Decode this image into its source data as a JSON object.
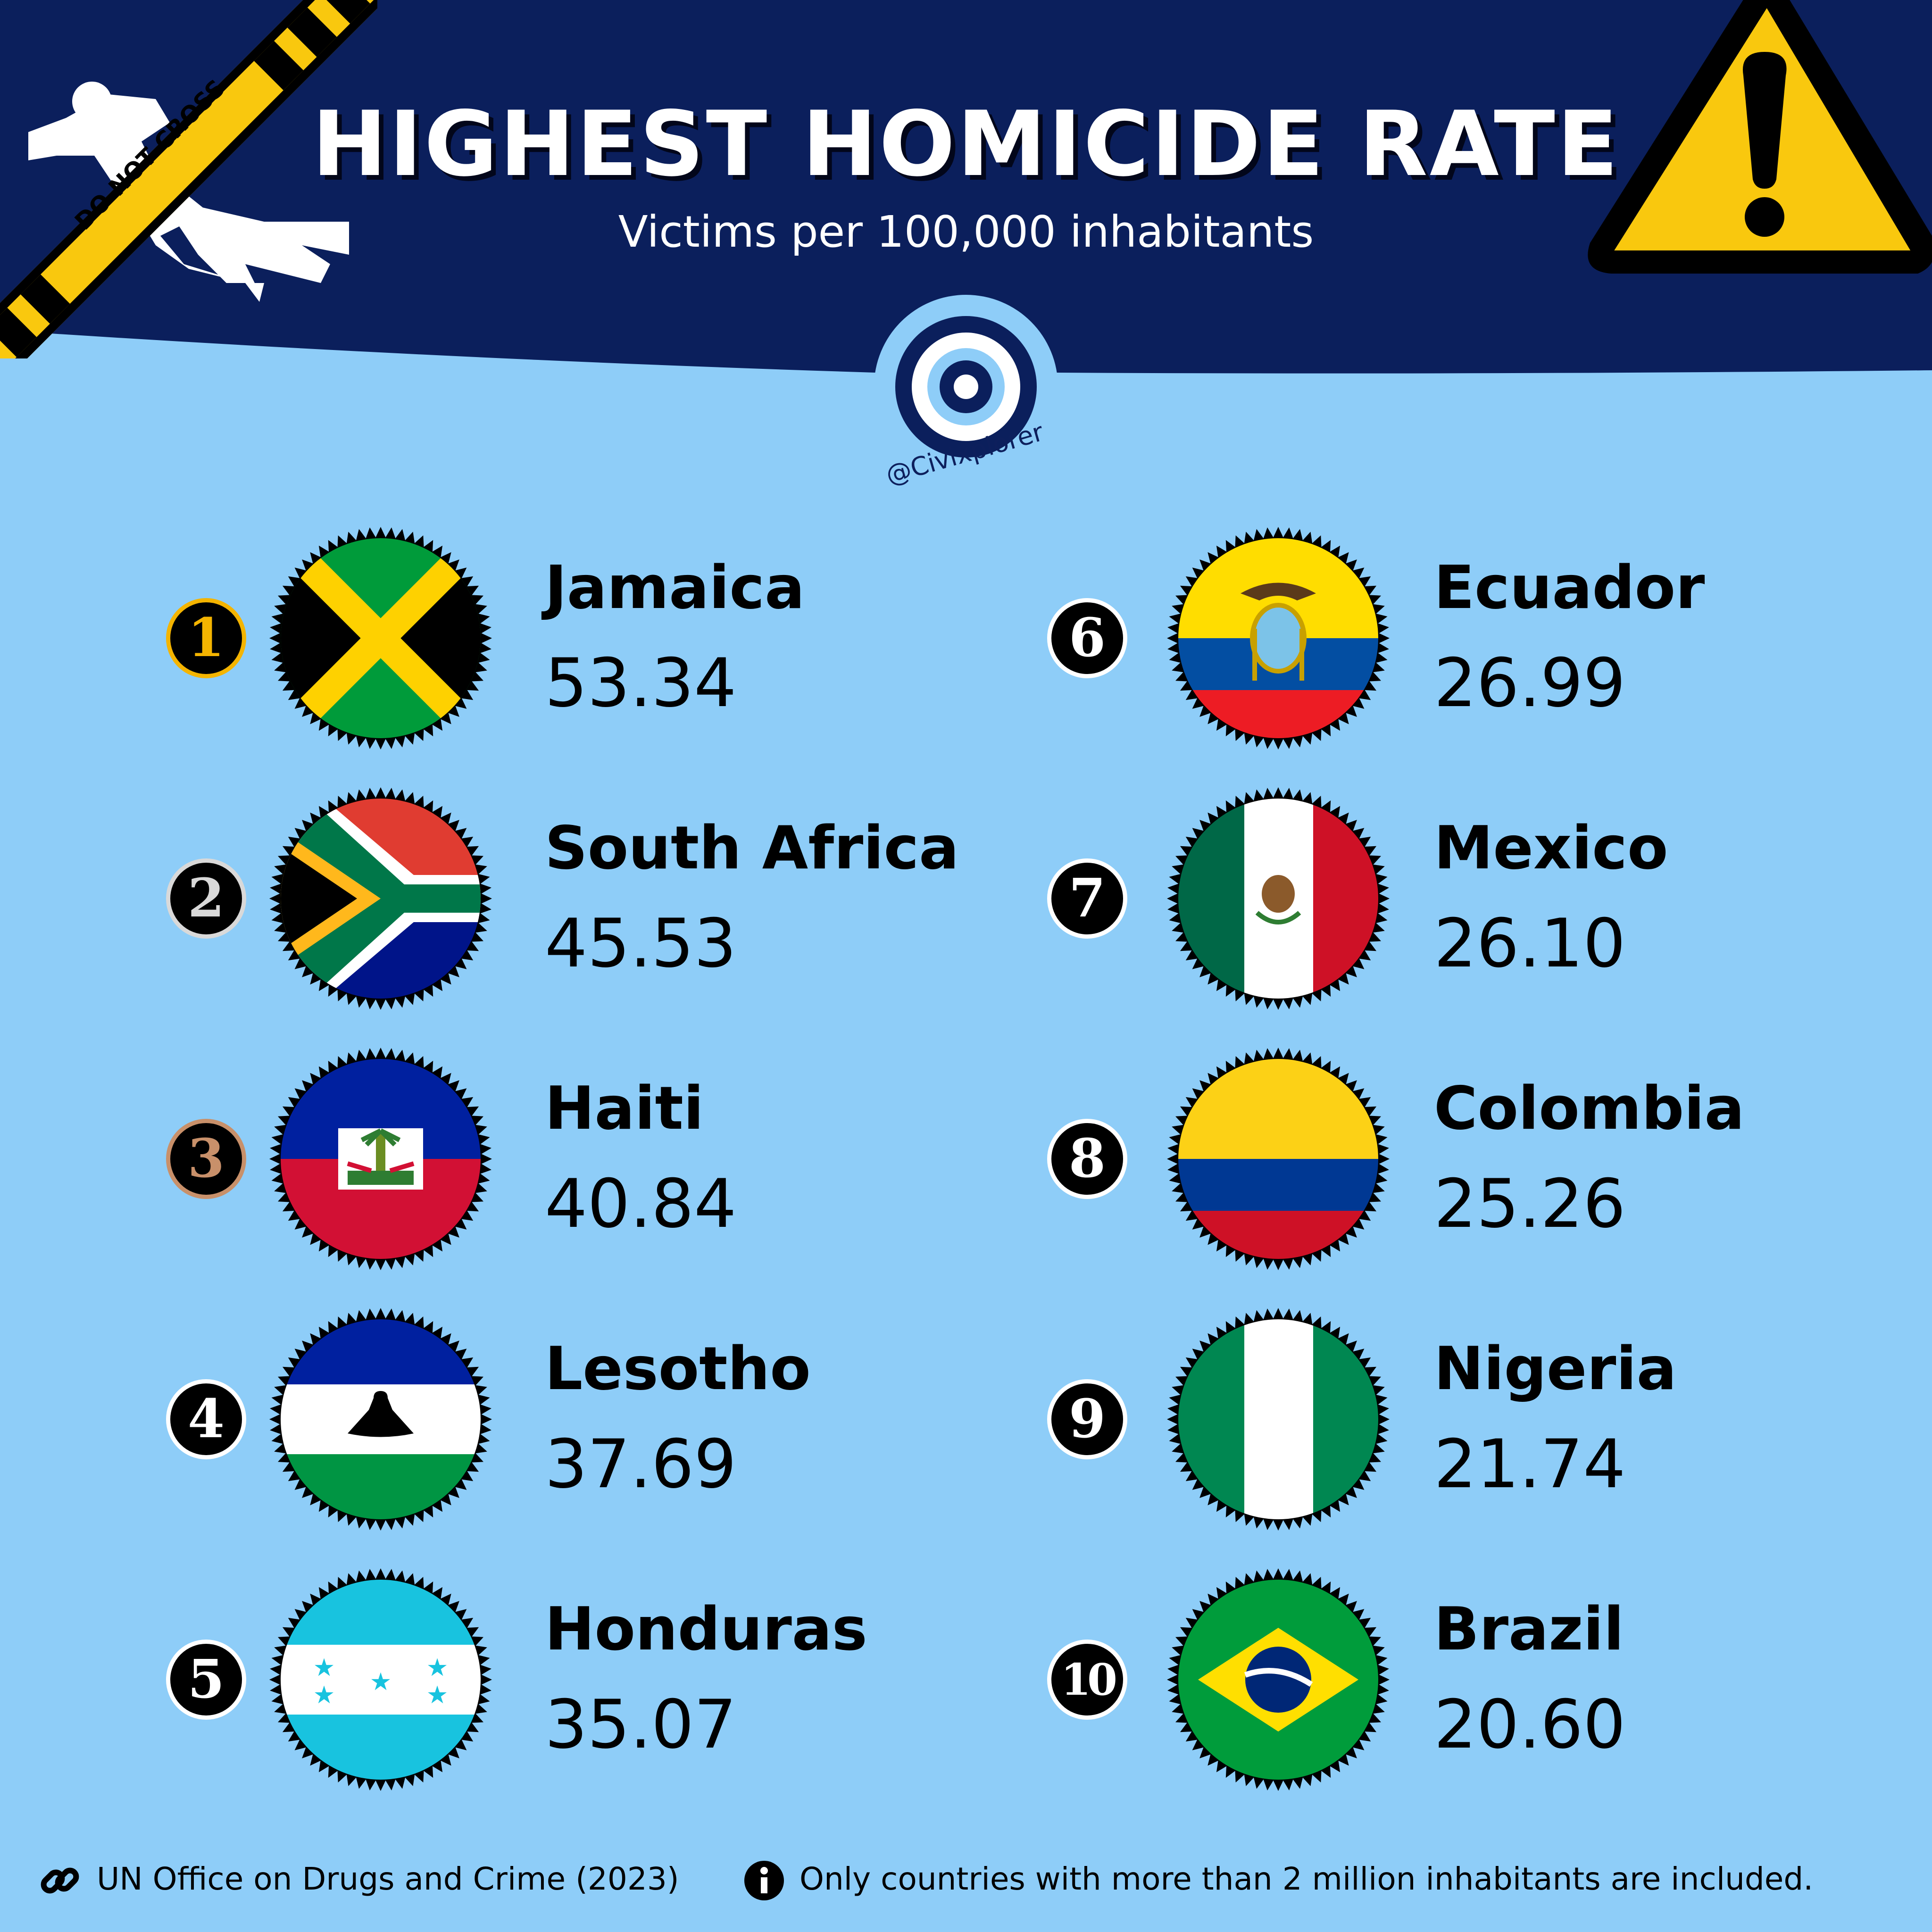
{
  "header": {
    "title": "HIGHEST HOMICIDE RATE",
    "subtitle": "Victims per 100,000 inhabitants",
    "tape_text": "DO NOT CROSS",
    "handle": "@Civixplorer"
  },
  "colors": {
    "header_bg": "#0b1f5c",
    "page_bg": "#8ecdf8",
    "warning_yellow": "#f9c80e",
    "rank1_ring": "#f4b400",
    "rank2_ring": "#d9d9d9",
    "rank3_ring": "#c8906a"
  },
  "rankings": [
    {
      "rank": "1",
      "country": "Jamaica",
      "value": "53.34",
      "flag": "jamaica-flag"
    },
    {
      "rank": "2",
      "country": "South Africa",
      "value": "45.53",
      "flag": "south-africa-flag"
    },
    {
      "rank": "3",
      "country": "Haiti",
      "value": "40.84",
      "flag": "haiti-flag"
    },
    {
      "rank": "4",
      "country": "Lesotho",
      "value": "37.69",
      "flag": "lesotho-flag"
    },
    {
      "rank": "5",
      "country": "Honduras",
      "value": "35.07",
      "flag": "honduras-flag"
    },
    {
      "rank": "6",
      "country": "Ecuador",
      "value": "26.99",
      "flag": "ecuador-flag"
    },
    {
      "rank": "7",
      "country": "Mexico",
      "value": "26.10",
      "flag": "mexico-flag"
    },
    {
      "rank": "8",
      "country": "Colombia",
      "value": "25.26",
      "flag": "colombia-flag"
    },
    {
      "rank": "9",
      "country": "Nigeria",
      "value": "21.74",
      "flag": "nigeria-flag"
    },
    {
      "rank": "10",
      "country": "Brazil",
      "value": "20.60",
      "flag": "brazil-flag"
    }
  ],
  "footer": {
    "source": "UN Office on Drugs and Crime (2023)",
    "note": "Only countries with more than 2 million inhabitants are included.",
    "source_icon": "link-icon",
    "note_icon": "info-icon"
  }
}
